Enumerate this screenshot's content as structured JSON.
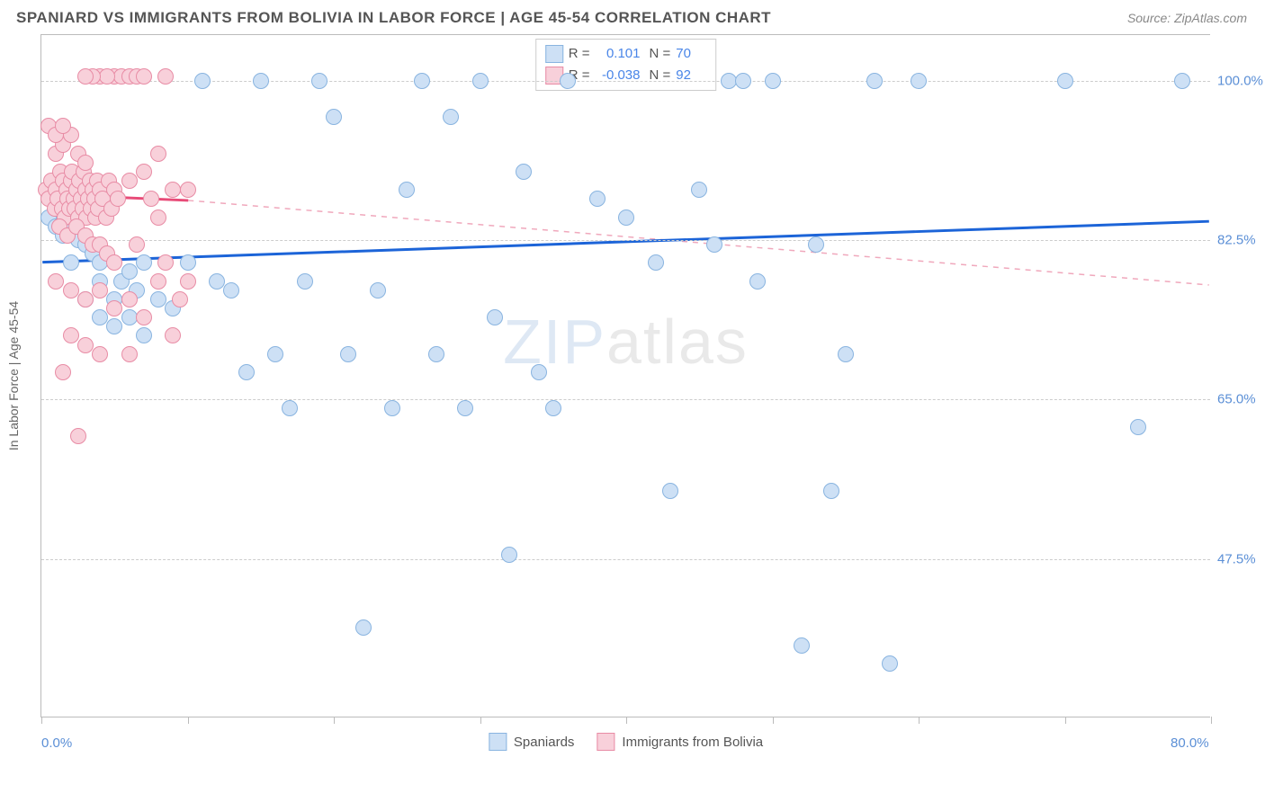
{
  "header": {
    "title": "SPANIARD VS IMMIGRANTS FROM BOLIVIA IN LABOR FORCE | AGE 45-54 CORRELATION CHART",
    "source": "Source: ZipAtlas.com"
  },
  "chart": {
    "type": "scatter",
    "y_axis_label": "In Labor Force | Age 45-54",
    "xlim": [
      0,
      80
    ],
    "ylim": [
      30,
      105
    ],
    "x_ticks": [
      0,
      10,
      20,
      30,
      40,
      50,
      60,
      70,
      80
    ],
    "x_tick_labels": {
      "0": "0.0%",
      "80": "80.0%"
    },
    "y_gridlines": [
      47.5,
      65.0,
      82.5,
      100.0
    ],
    "y_tick_labels": [
      "47.5%",
      "65.0%",
      "82.5%",
      "100.0%"
    ],
    "grid_color": "#cccccc",
    "border_color": "#bbbbbb",
    "background_color": "#ffffff",
    "point_radius": 9,
    "point_border_width": 1.5,
    "watermark": {
      "zip": "ZIP",
      "atlas": "atlas"
    },
    "series": [
      {
        "name": "Spaniards",
        "fill": "#cde0f5",
        "stroke": "#89b4e0",
        "trend": {
          "x1": 0,
          "y1": 80.0,
          "x2": 80,
          "y2": 84.5,
          "color": "#1c64d8",
          "width": 3,
          "dash": "none"
        },
        "R": "0.101",
        "N": "70",
        "points": [
          [
            0.5,
            85
          ],
          [
            1,
            84
          ],
          [
            1.5,
            83
          ],
          [
            2,
            84
          ],
          [
            2.5,
            82.5
          ],
          [
            1,
            86
          ],
          [
            2,
            80
          ],
          [
            3,
            82
          ],
          [
            3.5,
            81
          ],
          [
            4,
            80
          ],
          [
            3,
            76
          ],
          [
            4,
            78
          ],
          [
            5,
            76
          ],
          [
            5.5,
            78
          ],
          [
            6,
            79
          ],
          [
            6.5,
            77
          ],
          [
            7,
            80
          ],
          [
            4,
            74
          ],
          [
            5,
            73
          ],
          [
            6,
            74
          ],
          [
            7,
            72
          ],
          [
            8,
            76
          ],
          [
            9,
            75
          ],
          [
            10,
            80
          ],
          [
            11,
            100
          ],
          [
            12,
            78
          ],
          [
            13,
            77
          ],
          [
            14,
            68
          ],
          [
            15,
            100
          ],
          [
            16,
            70
          ],
          [
            17,
            64
          ],
          [
            18,
            78
          ],
          [
            19,
            100
          ],
          [
            20,
            96
          ],
          [
            21,
            70
          ],
          [
            22,
            40
          ],
          [
            23,
            77
          ],
          [
            24,
            64
          ],
          [
            25,
            88
          ],
          [
            26,
            100
          ],
          [
            27,
            70
          ],
          [
            28,
            96
          ],
          [
            29,
            64
          ],
          [
            30,
            100
          ],
          [
            31,
            74
          ],
          [
            32,
            48
          ],
          [
            33,
            90
          ],
          [
            34,
            68
          ],
          [
            35,
            64
          ],
          [
            36,
            100
          ],
          [
            38,
            87
          ],
          [
            40,
            85
          ],
          [
            42,
            80
          ],
          [
            43,
            55
          ],
          [
            45,
            88
          ],
          [
            46,
            82
          ],
          [
            47,
            100
          ],
          [
            48,
            100
          ],
          [
            49,
            78
          ],
          [
            50,
            100
          ],
          [
            52,
            38
          ],
          [
            53,
            82
          ],
          [
            54,
            55
          ],
          [
            55,
            70
          ],
          [
            57,
            100
          ],
          [
            58,
            36
          ],
          [
            60,
            100
          ],
          [
            70,
            100
          ],
          [
            75,
            62
          ],
          [
            78,
            100
          ]
        ]
      },
      {
        "name": "Immigrants from Bolivia",
        "fill": "#f8d0da",
        "stroke": "#e88ca5",
        "trend_solid": {
          "x1": 0,
          "y1": 87.5,
          "x2": 10,
          "y2": 86.8,
          "color": "#e84b78",
          "width": 3
        },
        "trend_dash": {
          "x1": 10,
          "y1": 86.8,
          "x2": 80,
          "y2": 77.5,
          "color": "#f0a8bc",
          "width": 1.5
        },
        "R": "-0.038",
        "N": "92",
        "points": [
          [
            0.3,
            88
          ],
          [
            0.5,
            87
          ],
          [
            0.7,
            89
          ],
          [
            0.9,
            86
          ],
          [
            1.0,
            88
          ],
          [
            1.1,
            87
          ],
          [
            1.3,
            90
          ],
          [
            1.4,
            86
          ],
          [
            1.5,
            89
          ],
          [
            1.6,
            85
          ],
          [
            1.7,
            88
          ],
          [
            1.8,
            87
          ],
          [
            1.9,
            86
          ],
          [
            2.0,
            89
          ],
          [
            2.1,
            90
          ],
          [
            2.2,
            87
          ],
          [
            2.3,
            86
          ],
          [
            2.4,
            88
          ],
          [
            2.5,
            85
          ],
          [
            2.6,
            89
          ],
          [
            2.7,
            87
          ],
          [
            2.8,
            86
          ],
          [
            2.9,
            90
          ],
          [
            3.0,
            88
          ],
          [
            3.1,
            85
          ],
          [
            3.2,
            87
          ],
          [
            3.3,
            89
          ],
          [
            3.4,
            86
          ],
          [
            3.5,
            88
          ],
          [
            3.6,
            87
          ],
          [
            3.7,
            85
          ],
          [
            3.8,
            89
          ],
          [
            3.9,
            86
          ],
          [
            4.0,
            88
          ],
          [
            4.2,
            87
          ],
          [
            4.4,
            85
          ],
          [
            4.6,
            89
          ],
          [
            4.8,
            86
          ],
          [
            5.0,
            88
          ],
          [
            5.2,
            87
          ],
          [
            1.0,
            92
          ],
          [
            1.5,
            93
          ],
          [
            2.0,
            94
          ],
          [
            2.5,
            92
          ],
          [
            3.0,
            91
          ],
          [
            1.2,
            84
          ],
          [
            1.8,
            83
          ],
          [
            2.4,
            84
          ],
          [
            3.0,
            83
          ],
          [
            3.5,
            82
          ],
          [
            4.0,
            82
          ],
          [
            4.5,
            81
          ],
          [
            5.0,
            80
          ],
          [
            1.0,
            78
          ],
          [
            2.0,
            77
          ],
          [
            3.0,
            76
          ],
          [
            4.0,
            77
          ],
          [
            5.0,
            75
          ],
          [
            6.0,
            76
          ],
          [
            2.0,
            72
          ],
          [
            3.0,
            71
          ],
          [
            4.0,
            70
          ],
          [
            1.5,
            68
          ],
          [
            2.5,
            61
          ],
          [
            0.5,
            95
          ],
          [
            1.0,
            94
          ],
          [
            1.5,
            95
          ],
          [
            5.0,
            100.5
          ],
          [
            5.5,
            100.5
          ],
          [
            6.0,
            100.5
          ],
          [
            6.5,
            100.5
          ],
          [
            7.0,
            100.5
          ],
          [
            8.5,
            100.5
          ],
          [
            7.0,
            90
          ],
          [
            8.0,
            92
          ],
          [
            6.0,
            89
          ],
          [
            7.5,
            87
          ],
          [
            8.0,
            85
          ],
          [
            9.0,
            88
          ],
          [
            6.5,
            82
          ],
          [
            8.5,
            80
          ],
          [
            9.5,
            76
          ],
          [
            7.0,
            74
          ],
          [
            6.0,
            70
          ],
          [
            8.0,
            78
          ],
          [
            9.0,
            72
          ],
          [
            10.0,
            88
          ],
          [
            10.0,
            78
          ],
          [
            4.0,
            100.5
          ],
          [
            4.5,
            100.5
          ],
          [
            3.5,
            100.5
          ],
          [
            3.0,
            100.5
          ]
        ]
      }
    ],
    "legend_bottom": [
      {
        "label": "Spaniards",
        "fill": "#cde0f5",
        "stroke": "#89b4e0"
      },
      {
        "label": "Immigrants from Bolivia",
        "fill": "#f8d0da",
        "stroke": "#e88ca5"
      }
    ]
  }
}
